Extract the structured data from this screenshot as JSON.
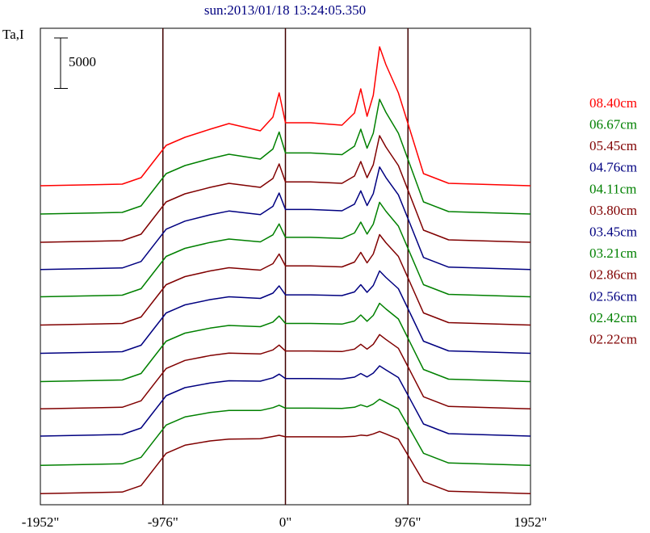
{
  "chart_data": {
    "type": "line",
    "title": "sun:2013/01/18 13:24:05.350",
    "y_label": "Ta,I",
    "scale_bar": 5000,
    "x": [
      -1952,
      -1300,
      -1150,
      -1050,
      -950,
      -800,
      -600,
      -450,
      -200,
      -100,
      -50,
      0,
      200,
      450,
      550,
      600,
      650,
      700,
      750,
      800,
      900,
      1000,
      1100,
      1300,
      1952
    ],
    "xlim": [
      -1952,
      1952
    ],
    "xticks": [
      {
        "value": -1952,
        "label": "-1952\""
      },
      {
        "value": -976,
        "label": "-976\""
      },
      {
        "value": 0,
        "label": "0\""
      },
      {
        "value": 976,
        "label": "976\""
      },
      {
        "value": 1952,
        "label": "1952\""
      }
    ],
    "ylim": [
      0,
      47000
    ],
    "grid": true,
    "legend": "right",
    "series": [
      {
        "name": "08.40cm",
        "color": "#ff0000",
        "values": [
          31600,
          31760,
          32400,
          34000,
          35600,
          36400,
          37200,
          37760,
          37040,
          38400,
          40800,
          37840,
          37840,
          37600,
          38800,
          41200,
          38480,
          40560,
          45360,
          43600,
          40800,
          36800,
          32800,
          31840,
          31600
        ]
      },
      {
        "name": "06.67cm",
        "color": "#008000",
        "values": [
          28800,
          28960,
          29600,
          31200,
          32800,
          33600,
          34280,
          34720,
          34240,
          35240,
          36920,
          34848,
          34848,
          34680,
          35520,
          37200,
          35320,
          36800,
          40160,
          38880,
          36800,
          33400,
          30000,
          29040,
          28800
        ]
      },
      {
        "name": "05.45cm",
        "color": "#800000",
        "values": [
          26000,
          26160,
          26800,
          28400,
          30000,
          30800,
          31440,
          31840,
          31440,
          32320,
          33760,
          31984,
          31984,
          31840,
          32560,
          34000,
          32400,
          33680,
          36560,
          35440,
          33600,
          30400,
          27200,
          26240,
          26000
        ]
      },
      {
        "name": "04.76cm",
        "color": "#000080",
        "values": [
          23300,
          23460,
          24100,
          25700,
          27300,
          28100,
          28720,
          29100,
          28740,
          29560,
          30880,
          29252,
          29252,
          29120,
          29780,
          31100,
          29640,
          30820,
          33460,
          32420,
          30700,
          27600,
          24500,
          23540,
          23300
        ]
      },
      {
        "name": "04.11cm",
        "color": "#008000",
        "values": [
          20600,
          20760,
          21400,
          23000,
          24600,
          25400,
          25980,
          26320,
          26040,
          26740,
          27820,
          26488,
          26488,
          26380,
          26920,
          28000,
          26820,
          27800,
          29960,
          29080,
          27600,
          24700,
          21800,
          20840,
          20600
        ]
      },
      {
        "name": "03.80cm",
        "color": "#800000",
        "values": [
          17800,
          17960,
          18600,
          20200,
          21800,
          22600,
          23160,
          23480,
          23240,
          23880,
          24840,
          23656,
          23656,
          23560,
          24040,
          25000,
          23960,
          24840,
          26760,
          25960,
          24600,
          21800,
          19000,
          18040,
          17800
        ]
      },
      {
        "name": "03.45cm",
        "color": "#000080",
        "values": [
          15000,
          15160,
          15800,
          17400,
          19000,
          19800,
          20320,
          20600,
          20440,
          20960,
          21680,
          20792,
          20792,
          20720,
          21080,
          21800,
          21040,
          21720,
          23160,
          22520,
          21400,
          18800,
          16200,
          15240,
          15000
        ]
      },
      {
        "name": "03.21cm",
        "color": "#008000",
        "values": [
          12200,
          12360,
          13000,
          14600,
          16200,
          17000,
          17500,
          17760,
          17640,
          18100,
          18700,
          17960,
          17960,
          17900,
          18200,
          18800,
          18180,
          18760,
          19960,
          19400,
          18400,
          15900,
          13400,
          12440,
          12200
        ]
      },
      {
        "name": "02.86cm",
        "color": "#800000",
        "values": [
          9500,
          9660,
          10300,
          11900,
          13500,
          14300,
          14780,
          15020,
          14940,
          15340,
          15820,
          15228,
          15228,
          15180,
          15420,
          15900,
          15420,
          15900,
          16860,
          16380,
          15500,
          13100,
          10700,
          9740,
          9500
        ]
      },
      {
        "name": "02.56cm",
        "color": "#000080",
        "values": [
          6800,
          6960,
          7600,
          9200,
          10800,
          11600,
          12060,
          12280,
          12240,
          12580,
          12940,
          12496,
          12496,
          12460,
          12640,
          13000,
          12660,
          13040,
          13760,
          13360,
          12600,
          10300,
          8000,
          7040,
          6800
        ]
      },
      {
        "name": "02.42cm",
        "color": "#008000",
        "values": [
          3900,
          4060,
          4700,
          6300,
          7900,
          8700,
          9140,
          9340,
          9340,
          9620,
          9860,
          9564,
          9564,
          9540,
          9660,
          9900,
          9700,
          9980,
          10460,
          10140,
          9500,
          7300,
          5100,
          4140,
          3900
        ]
      },
      {
        "name": "02.22cm",
        "color": "#800000",
        "values": [
          1100,
          1260,
          1900,
          3500,
          5100,
          5900,
          6320,
          6500,
          6540,
          6760,
          6880,
          6732,
          6732,
          6720,
          6780,
          6900,
          6840,
          7020,
          7260,
          7020,
          6500,
          4400,
          2300,
          1340,
          1100
        ]
      }
    ]
  }
}
